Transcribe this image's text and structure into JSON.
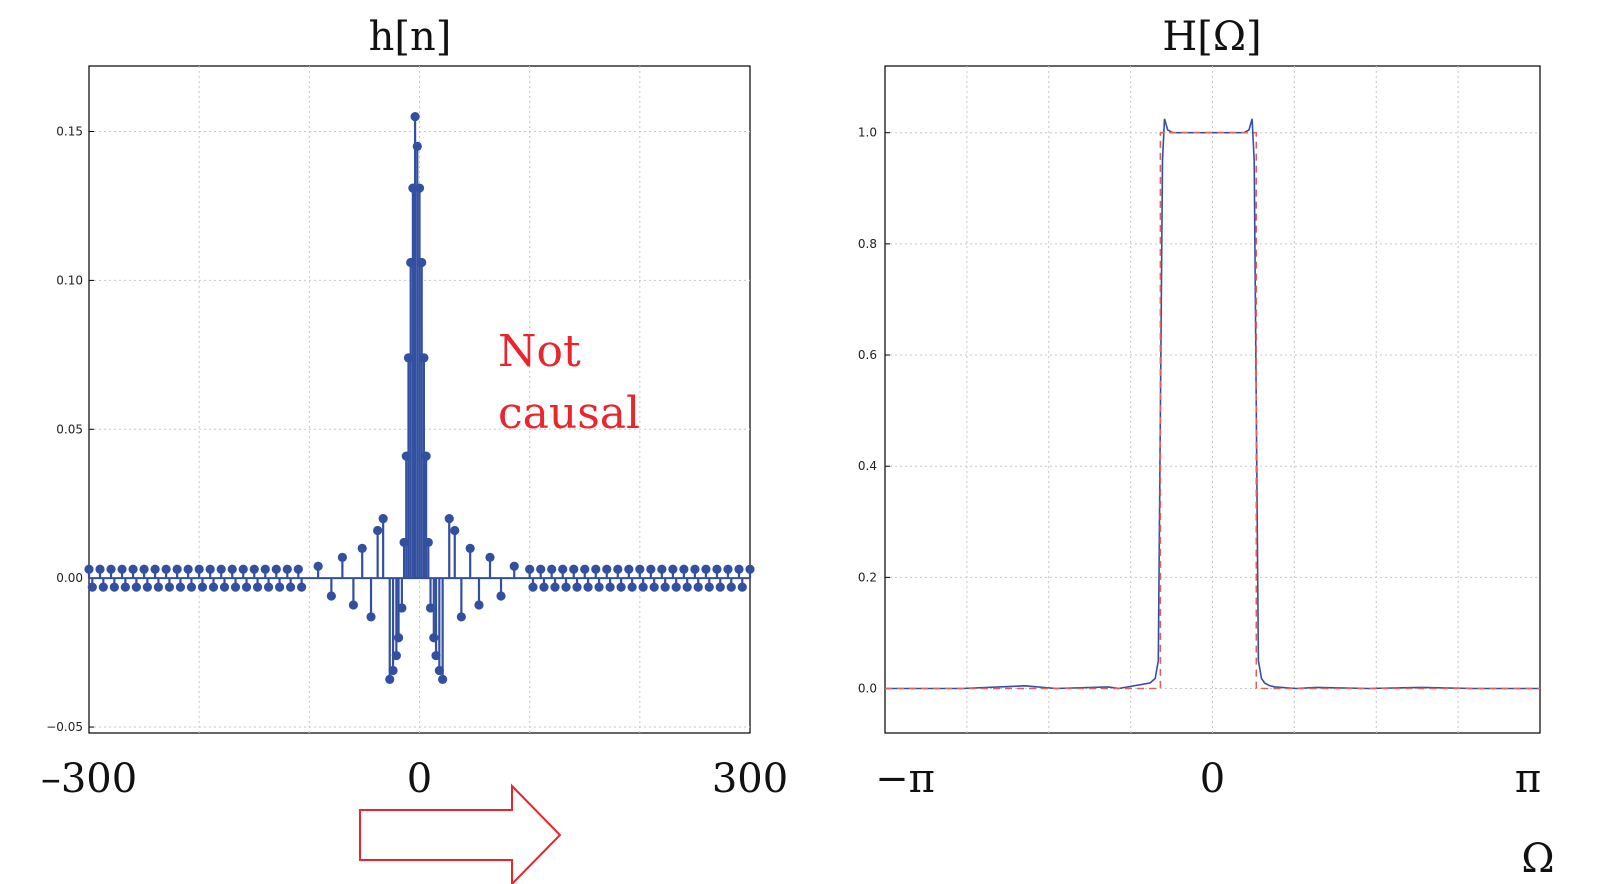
{
  "colors": {
    "stem": "#3350a0",
    "dashed": "#e06060",
    "annotation": "#e8262c",
    "grid": "#c8c8c8"
  },
  "annotation": {
    "line1": "Not",
    "line2": "causal"
  },
  "arrow": {
    "icon": "right-arrow-icon",
    "color": "#e8262c"
  },
  "chart_data": [
    {
      "type": "stem",
      "title": "h[n]",
      "xlabel": "",
      "ylabel": "",
      "xlim": [
        -300,
        300
      ],
      "ylim": [
        -0.052,
        0.172
      ],
      "grid": true,
      "y_ticks": [
        "0.15",
        "0.10",
        "0.05",
        "0.00",
        "−0.05"
      ],
      "y_tick_values": [
        0.15,
        0.1,
        0.05,
        0.0,
        -0.05
      ],
      "x_ticks": [
        "–300",
        "0",
        "300"
      ],
      "x_tick_values": [
        -300,
        0,
        300
      ],
      "x_grid_values": [
        -200,
        -100,
        0,
        100,
        200
      ],
      "points": [
        {
          "n": -4,
          "v": 0.155
        },
        {
          "n": -2,
          "v": 0.145
        },
        {
          "n": -6,
          "v": 0.131
        },
        {
          "n": 0,
          "v": 0.131
        },
        {
          "n": -8,
          "v": 0.106
        },
        {
          "n": 2,
          "v": 0.106
        },
        {
          "n": -10,
          "v": 0.074
        },
        {
          "n": 4,
          "v": 0.074
        },
        {
          "n": -12,
          "v": 0.041
        },
        {
          "n": 6,
          "v": 0.041
        },
        {
          "n": -14,
          "v": 0.012
        },
        {
          "n": 8,
          "v": 0.012
        },
        {
          "n": -16,
          "v": -0.01
        },
        {
          "n": 10,
          "v": -0.01
        },
        {
          "n": -19,
          "v": -0.02
        },
        {
          "n": 13,
          "v": -0.02
        },
        {
          "n": -21,
          "v": -0.026
        },
        {
          "n": 15,
          "v": -0.026
        },
        {
          "n": -24,
          "v": -0.031
        },
        {
          "n": 18,
          "v": -0.031
        },
        {
          "n": -27,
          "v": -0.034
        },
        {
          "n": 21,
          "v": -0.034
        },
        {
          "n": -33,
          "v": 0.02
        },
        {
          "n": 27,
          "v": 0.02
        },
        {
          "n": -38,
          "v": 0.016
        },
        {
          "n": 32,
          "v": 0.016
        },
        {
          "n": -44,
          "v": -0.013
        },
        {
          "n": 38,
          "v": -0.013
        },
        {
          "n": -52,
          "v": 0.01
        },
        {
          "n": 46,
          "v": 0.01
        },
        {
          "n": -60,
          "v": -0.009
        },
        {
          "n": 54,
          "v": -0.009
        },
        {
          "n": -70,
          "v": 0.007
        },
        {
          "n": 64,
          "v": 0.007
        },
        {
          "n": -80,
          "v": -0.006
        },
        {
          "n": 74,
          "v": -0.006
        },
        {
          "n": -92,
          "v": 0.004
        },
        {
          "n": 86,
          "v": 0.004
        }
      ],
      "tail": {
        "n_min": -300,
        "n_max": 300,
        "step": 10,
        "amplitude": 0.003
      }
    },
    {
      "type": "line",
      "title": "H[Ω]",
      "xlabel": "Ω",
      "ylabel": "",
      "xlim": [
        -3.1416,
        3.1416
      ],
      "ylim": [
        -0.08,
        1.12
      ],
      "grid": true,
      "y_ticks": [
        "1.0",
        "0.8",
        "0.6",
        "0.4",
        "0.2",
        "0.0"
      ],
      "y_tick_values": [
        1.0,
        0.8,
        0.6,
        0.4,
        0.2,
        0.0
      ],
      "x_ticks": [
        "−π",
        "0",
        "π"
      ],
      "x_tick_values": [
        -3.1416,
        0,
        3.1416
      ],
      "x_grid_values": [
        -2.356,
        -1.571,
        -0.785,
        0,
        0.785,
        1.571,
        2.356
      ],
      "series": [
        {
          "style": "solid",
          "x": [
            -3.1416,
            -2.4,
            -1.8,
            -1.5,
            -1.0,
            -0.9,
            -0.6,
            -0.55,
            -0.52,
            -0.5,
            -0.48,
            -0.46,
            -0.43,
            -0.38,
            0.0,
            0.3,
            0.35,
            0.38,
            0.4,
            0.42,
            0.44,
            0.47,
            0.5,
            0.55,
            0.6,
            0.8,
            1.0,
            1.5,
            2.0,
            2.5,
            3.1416
          ],
          "y": [
            0.0,
            0.0,
            0.005,
            0.0,
            0.003,
            0.0,
            0.01,
            0.018,
            0.05,
            0.5,
            0.95,
            1.025,
            1.005,
            1.0,
            1.0,
            1.0,
            1.005,
            1.025,
            0.95,
            0.5,
            0.05,
            0.018,
            0.01,
            0.005,
            0.003,
            0.0,
            0.002,
            0.0,
            0.002,
            0.0,
            0.0
          ]
        },
        {
          "style": "dashed",
          "x": [
            -3.1416,
            -0.5,
            -0.5,
            0.42,
            0.42,
            3.1416
          ],
          "y": [
            0.0,
            0.0,
            1.0,
            1.0,
            0.0,
            0.0
          ]
        }
      ]
    }
  ]
}
